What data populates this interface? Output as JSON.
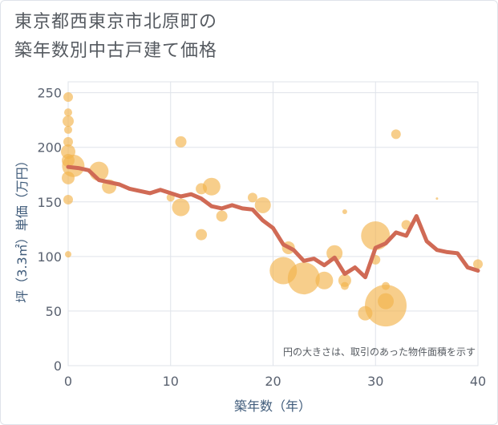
{
  "title_lines": [
    "東京都西東京市北原町の",
    "築年数別中古戸建て価格"
  ],
  "chart_data": {
    "type": "scatter",
    "xlabel": "築年数（年）",
    "ylabel": "坪（3.3㎡）単価（万円）",
    "xlim": [
      0,
      40
    ],
    "ylim": [
      0,
      260
    ],
    "xticks": [
      0,
      10,
      20,
      30,
      40
    ],
    "yticks": [
      0,
      50,
      100,
      150,
      200,
      250
    ],
    "grid": true,
    "note": "円の大きさは、取引のあった物件面積を示す",
    "colors": {
      "bubble": "#f2b34d",
      "line": "#d06a55",
      "grid": "#dfe3ea",
      "border": "#dfe3ea"
    },
    "bubbles": [
      {
        "x": 0,
        "y": 246,
        "s": 6
      },
      {
        "x": 0,
        "y": 232,
        "s": 5
      },
      {
        "x": 0,
        "y": 224,
        "s": 7
      },
      {
        "x": 0,
        "y": 216,
        "s": 5
      },
      {
        "x": 0,
        "y": 205,
        "s": 6
      },
      {
        "x": 0,
        "y": 196,
        "s": 9
      },
      {
        "x": 0,
        "y": 188,
        "s": 8
      },
      {
        "x": 0.5,
        "y": 183,
        "s": 14
      },
      {
        "x": 0,
        "y": 172,
        "s": 8
      },
      {
        "x": 0,
        "y": 152,
        "s": 6
      },
      {
        "x": 0,
        "y": 102,
        "s": 4
      },
      {
        "x": 3,
        "y": 178,
        "s": 12
      },
      {
        "x": 4,
        "y": 164,
        "s": 9
      },
      {
        "x": 10,
        "y": 154,
        "s": 5
      },
      {
        "x": 11,
        "y": 205,
        "s": 7
      },
      {
        "x": 11,
        "y": 145,
        "s": 11
      },
      {
        "x": 13,
        "y": 162,
        "s": 7
      },
      {
        "x": 14,
        "y": 164,
        "s": 11
      },
      {
        "x": 13,
        "y": 120,
        "s": 7
      },
      {
        "x": 15,
        "y": 137,
        "s": 7
      },
      {
        "x": 18,
        "y": 154,
        "s": 6
      },
      {
        "x": 19,
        "y": 147,
        "s": 10
      },
      {
        "x": 21,
        "y": 87,
        "s": 17
      },
      {
        "x": 21.5,
        "y": 108,
        "s": 8
      },
      {
        "x": 23,
        "y": 80,
        "s": 20
      },
      {
        "x": 25,
        "y": 78,
        "s": 11
      },
      {
        "x": 26,
        "y": 103,
        "s": 10
      },
      {
        "x": 27,
        "y": 78,
        "s": 8
      },
      {
        "x": 27,
        "y": 73,
        "s": 5
      },
      {
        "x": 27,
        "y": 141,
        "s": 3
      },
      {
        "x": 29,
        "y": 48,
        "s": 9
      },
      {
        "x": 30,
        "y": 119,
        "s": 18
      },
      {
        "x": 30,
        "y": 97,
        "s": 6
      },
      {
        "x": 31,
        "y": 55,
        "s": 26
      },
      {
        "x": 31,
        "y": 59,
        "s": 10
      },
      {
        "x": 31,
        "y": 73,
        "s": 5
      },
      {
        "x": 32,
        "y": 212,
        "s": 6
      },
      {
        "x": 33,
        "y": 129,
        "s": 6
      },
      {
        "x": 36,
        "y": 153,
        "s": 1.5
      },
      {
        "x": 40,
        "y": 93,
        "s": 6
      }
    ],
    "line": {
      "x": [
        0,
        1,
        2,
        3,
        4,
        5,
        6,
        7,
        8,
        9,
        10,
        11,
        12,
        13,
        14,
        15,
        16,
        17,
        18,
        19,
        20,
        21,
        22,
        23,
        24,
        25,
        26,
        27,
        28,
        29,
        30,
        31,
        32,
        33,
        34,
        35,
        36,
        37,
        38,
        39,
        40
      ],
      "y": [
        182,
        181,
        179,
        170,
        168,
        166,
        162,
        160,
        158,
        161,
        158,
        155,
        157,
        153,
        146,
        144,
        147,
        144,
        143,
        133,
        126,
        111,
        106,
        96,
        98,
        92,
        99,
        84,
        90,
        81,
        108,
        112,
        122,
        119,
        137,
        114,
        106,
        104,
        103,
        90,
        87
      ]
    }
  }
}
